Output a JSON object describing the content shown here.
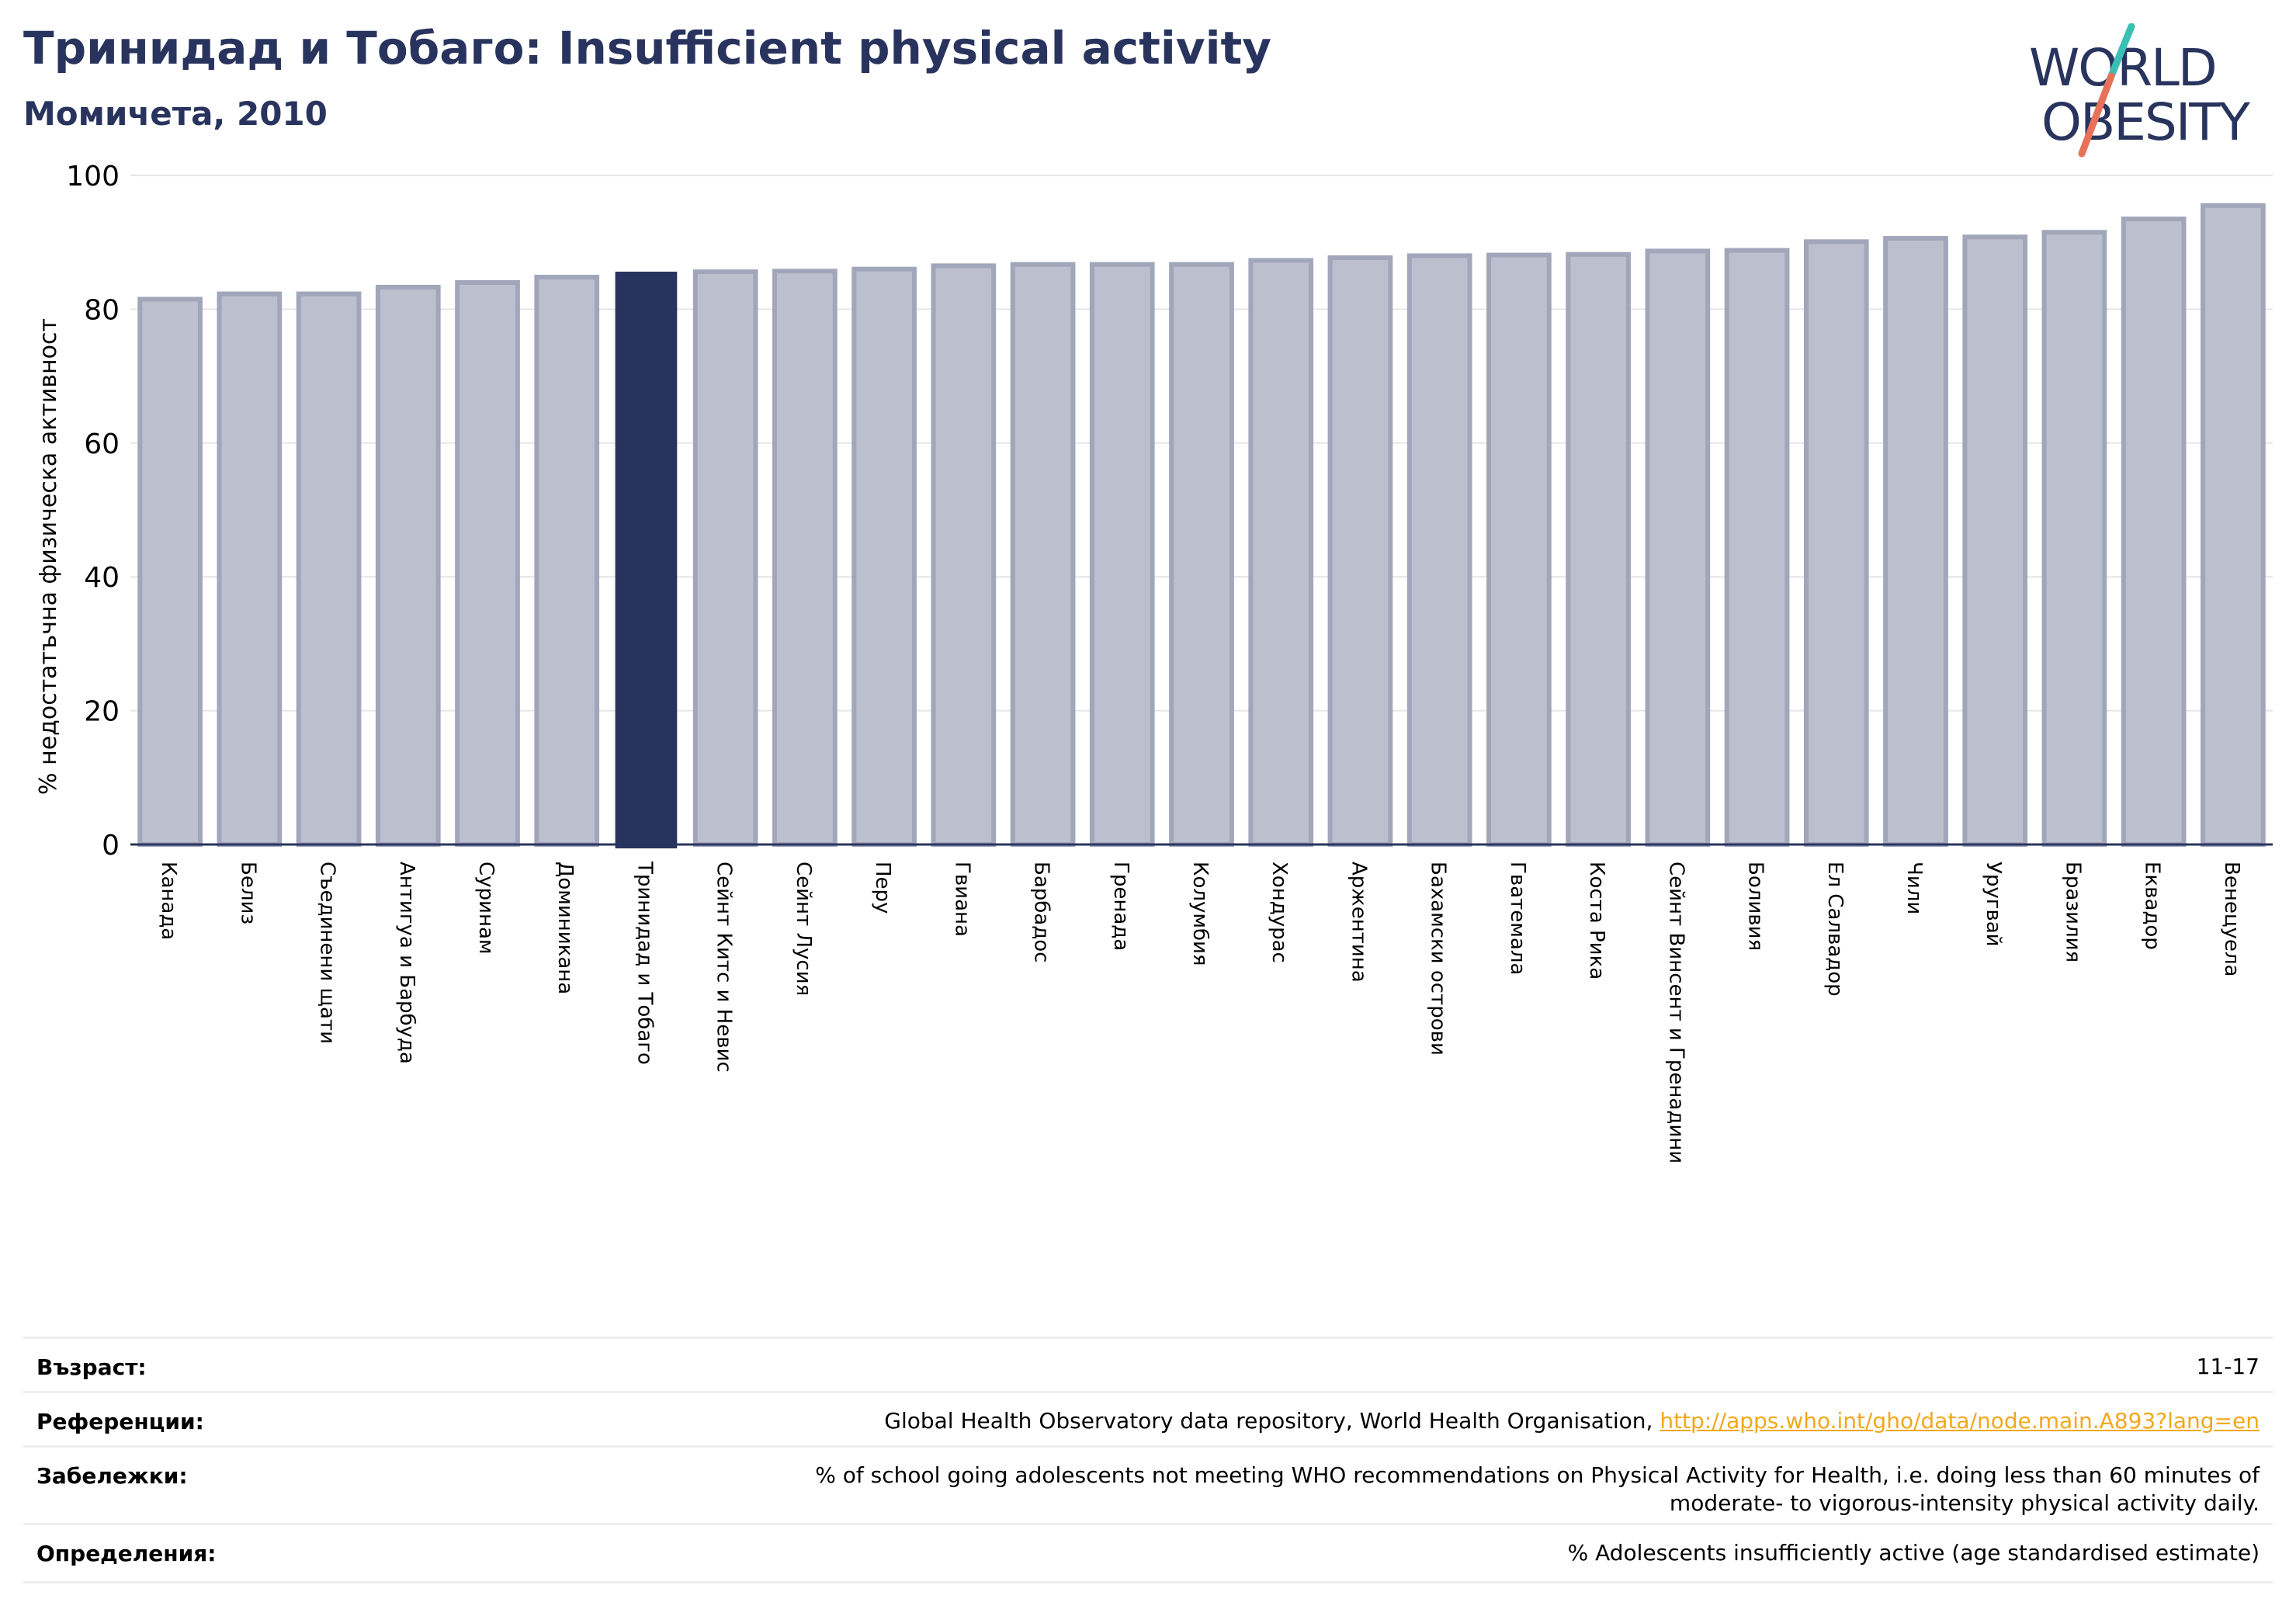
{
  "header": {
    "title": "Тринидад и Тобаго: Insufficient physical activity",
    "subtitle": "Момичета, 2010"
  },
  "logo": {
    "line1": "WORLD",
    "line2": "OBESITY",
    "slash_colors": [
      "#3bbfb5",
      "#e8715a"
    ],
    "text_color": "#29345e"
  },
  "colors": {
    "highlight": "#29345e",
    "bar_fill": "#bcbfcd",
    "bar_stroke": "#a1a6ba",
    "link": "#f2a81d"
  },
  "chart_data": {
    "type": "bar",
    "ylabel": "% недостатъчна физическа активност",
    "ylim": [
      0,
      100
    ],
    "yticks": [
      0,
      20,
      40,
      60,
      80,
      100
    ],
    "grid": true,
    "highlight_category": "Тринидад и Тобаго",
    "categories": [
      "Канада",
      "Белиз",
      "Съединени щати",
      "Антигуа и Барбуда",
      "Суринам",
      "Доминикана",
      "Тринидад и Тобаго",
      "Сейнт Китс и Невис",
      "Сейнт Лусия",
      "Перу",
      "Гвиана",
      "Барбадос",
      "Гренада",
      "Колумбия",
      "Хондурас",
      "Аржентина",
      "Бахамски острови",
      "Гватемала",
      "Коста Рика",
      "Сейнт Винсент и Гренадини",
      "Боливия",
      "Ел Салвадор",
      "Чили",
      "Уругвай",
      "Бразилия",
      "Еквадор",
      "Венецуела"
    ],
    "values": [
      81.5,
      82.3,
      82.3,
      83.3,
      84.0,
      84.8,
      85.5,
      85.6,
      85.7,
      86.0,
      86.5,
      86.7,
      86.7,
      86.7,
      87.3,
      87.7,
      88.0,
      88.1,
      88.2,
      88.7,
      88.8,
      90.1,
      90.6,
      90.8,
      91.5,
      93.5,
      95.5
    ]
  },
  "meta": {
    "age_label": "Възраст:",
    "age_value": "11-17",
    "refs_label": "Референции:",
    "refs_text": "Global Health Observatory data repository, World Health Organisation, ",
    "refs_link": "http://apps.who.int/gho/data/node.main.A893?lang=en",
    "notes_label": "Забележки:",
    "notes_line1": "% of school going adolescents not meeting WHO recommendations on Physical Activity for Health, i.e. doing less than 60 minutes of",
    "notes_line2": "moderate- to vigorous-intensity physical activity daily.",
    "defs_label": "Определения:",
    "defs_value": "% Adolescents insufficiently active (age standardised estimate)"
  }
}
